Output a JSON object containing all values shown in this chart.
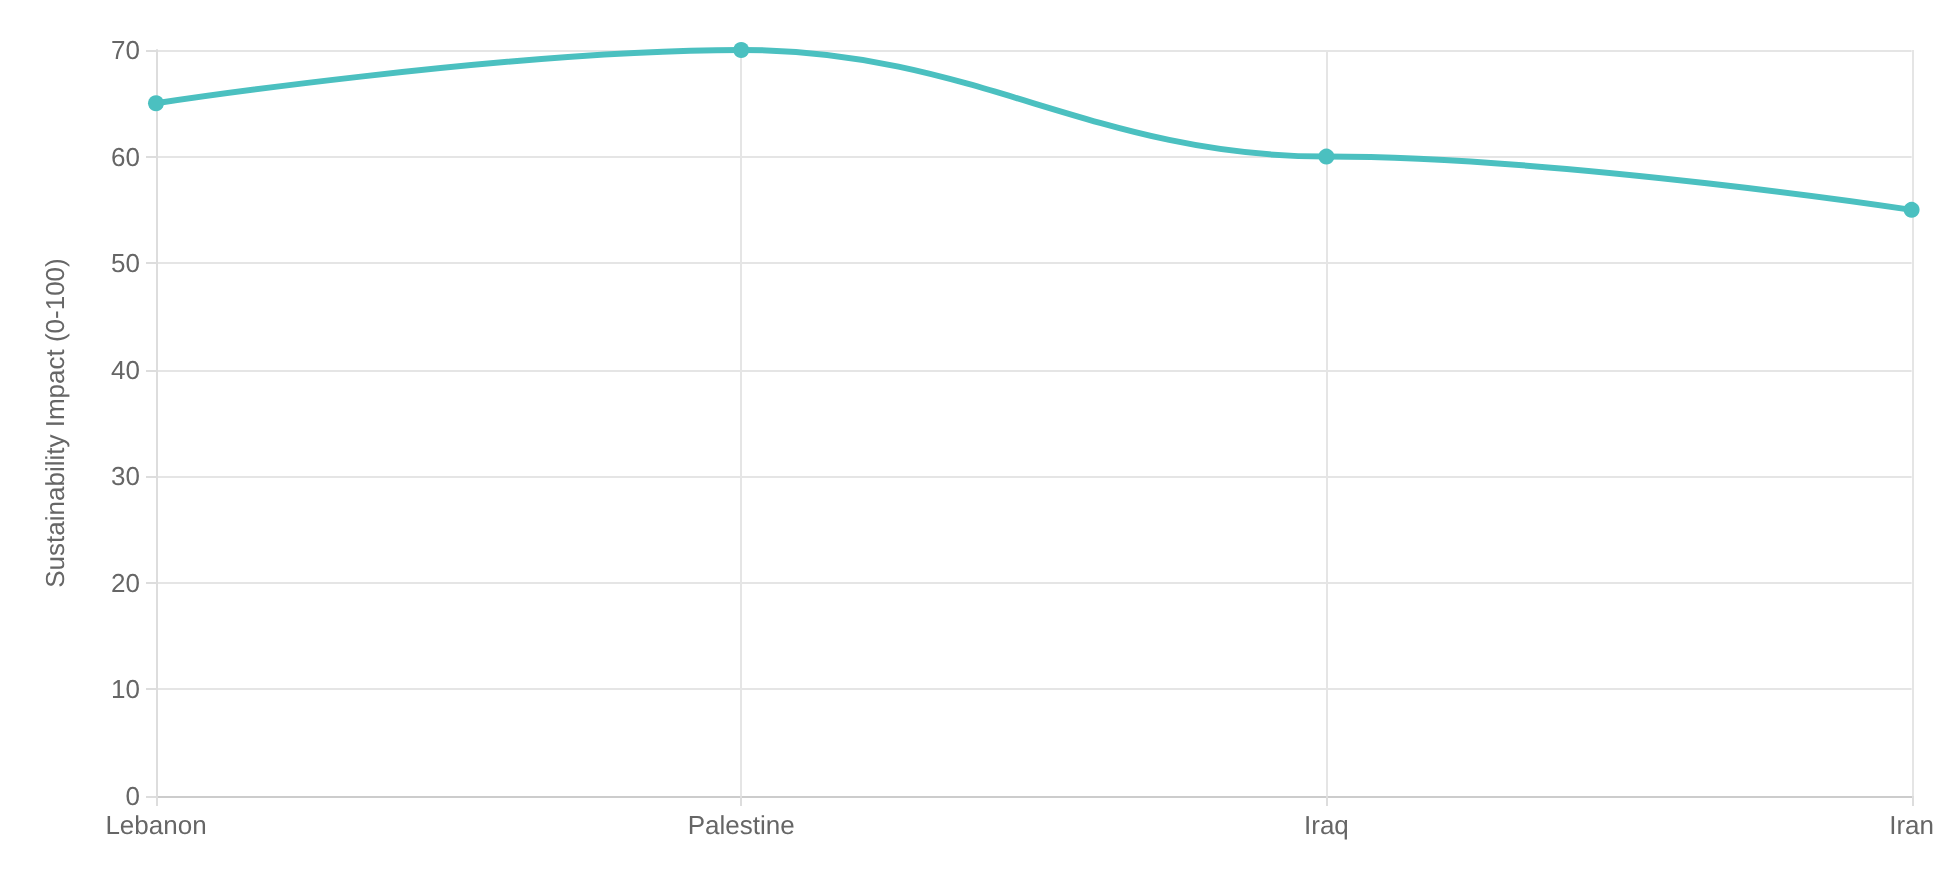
{
  "chart_data": {
    "type": "line",
    "ylabel": "Sustainability Impact (0-100)",
    "categories": [
      "Lebanon",
      "Palestine",
      "Iraq",
      "Iran"
    ],
    "series": [
      {
        "color": "#4bc0c0",
        "values": [
          65,
          70,
          60,
          55
        ]
      }
    ],
    "ylim": [
      0,
      70
    ],
    "yticks": [
      0,
      10,
      20,
      30,
      40,
      50,
      60,
      70
    ],
    "grid": true,
    "marker": "circle",
    "line_style": "solid"
  }
}
